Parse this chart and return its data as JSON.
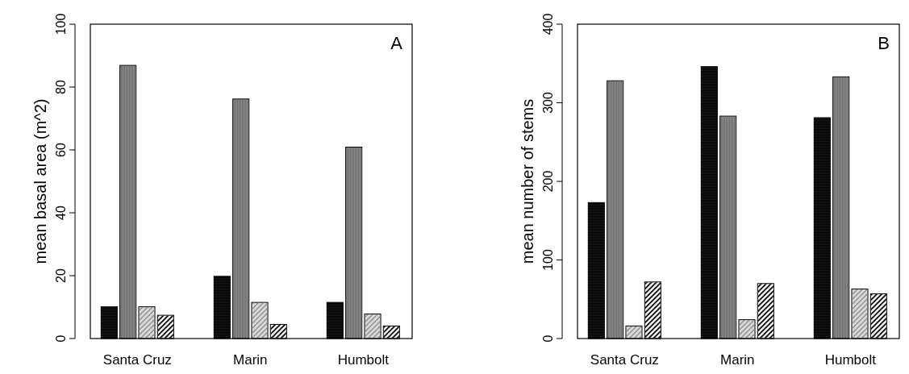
{
  "chart_data": [
    {
      "type": "bar",
      "title": "A",
      "ylabel": "mean basal area (m^2)",
      "categories": [
        "Santa Cruz",
        "Marin",
        "Humbolt"
      ],
      "ylim": [
        0,
        100
      ],
      "yticks": [
        0,
        20,
        40,
        60,
        80,
        100
      ],
      "series": [
        {
          "color": "#1a1a1a",
          "values": [
            10.1,
            19.8,
            11.5
          ]
        },
        {
          "color": "#8c8c8c",
          "values": [
            86.9,
            76.2,
            60.9
          ]
        },
        {
          "color": "#d9d9d9",
          "values": [
            10.1,
            11.5,
            7.8
          ]
        },
        {
          "color": "#f2f2f2",
          "values": [
            7.4,
            4.5,
            4.0
          ]
        }
      ]
    },
    {
      "type": "bar",
      "title": "B",
      "ylabel": "mean number of stems",
      "categories": [
        "Santa Cruz",
        "Marin",
        "Humbolt"
      ],
      "ylim": [
        0,
        400
      ],
      "yticks": [
        0,
        100,
        200,
        300,
        400
      ],
      "series": [
        {
          "color": "#1a1a1a",
          "values": [
            173,
            346,
            281
          ]
        },
        {
          "color": "#8c8c8c",
          "values": [
            328,
            283,
            333
          ]
        },
        {
          "color": "#d9d9d9",
          "values": [
            16,
            24,
            63
          ]
        },
        {
          "color": "#f2f2f2",
          "values": [
            72,
            70,
            57
          ]
        }
      ]
    }
  ]
}
